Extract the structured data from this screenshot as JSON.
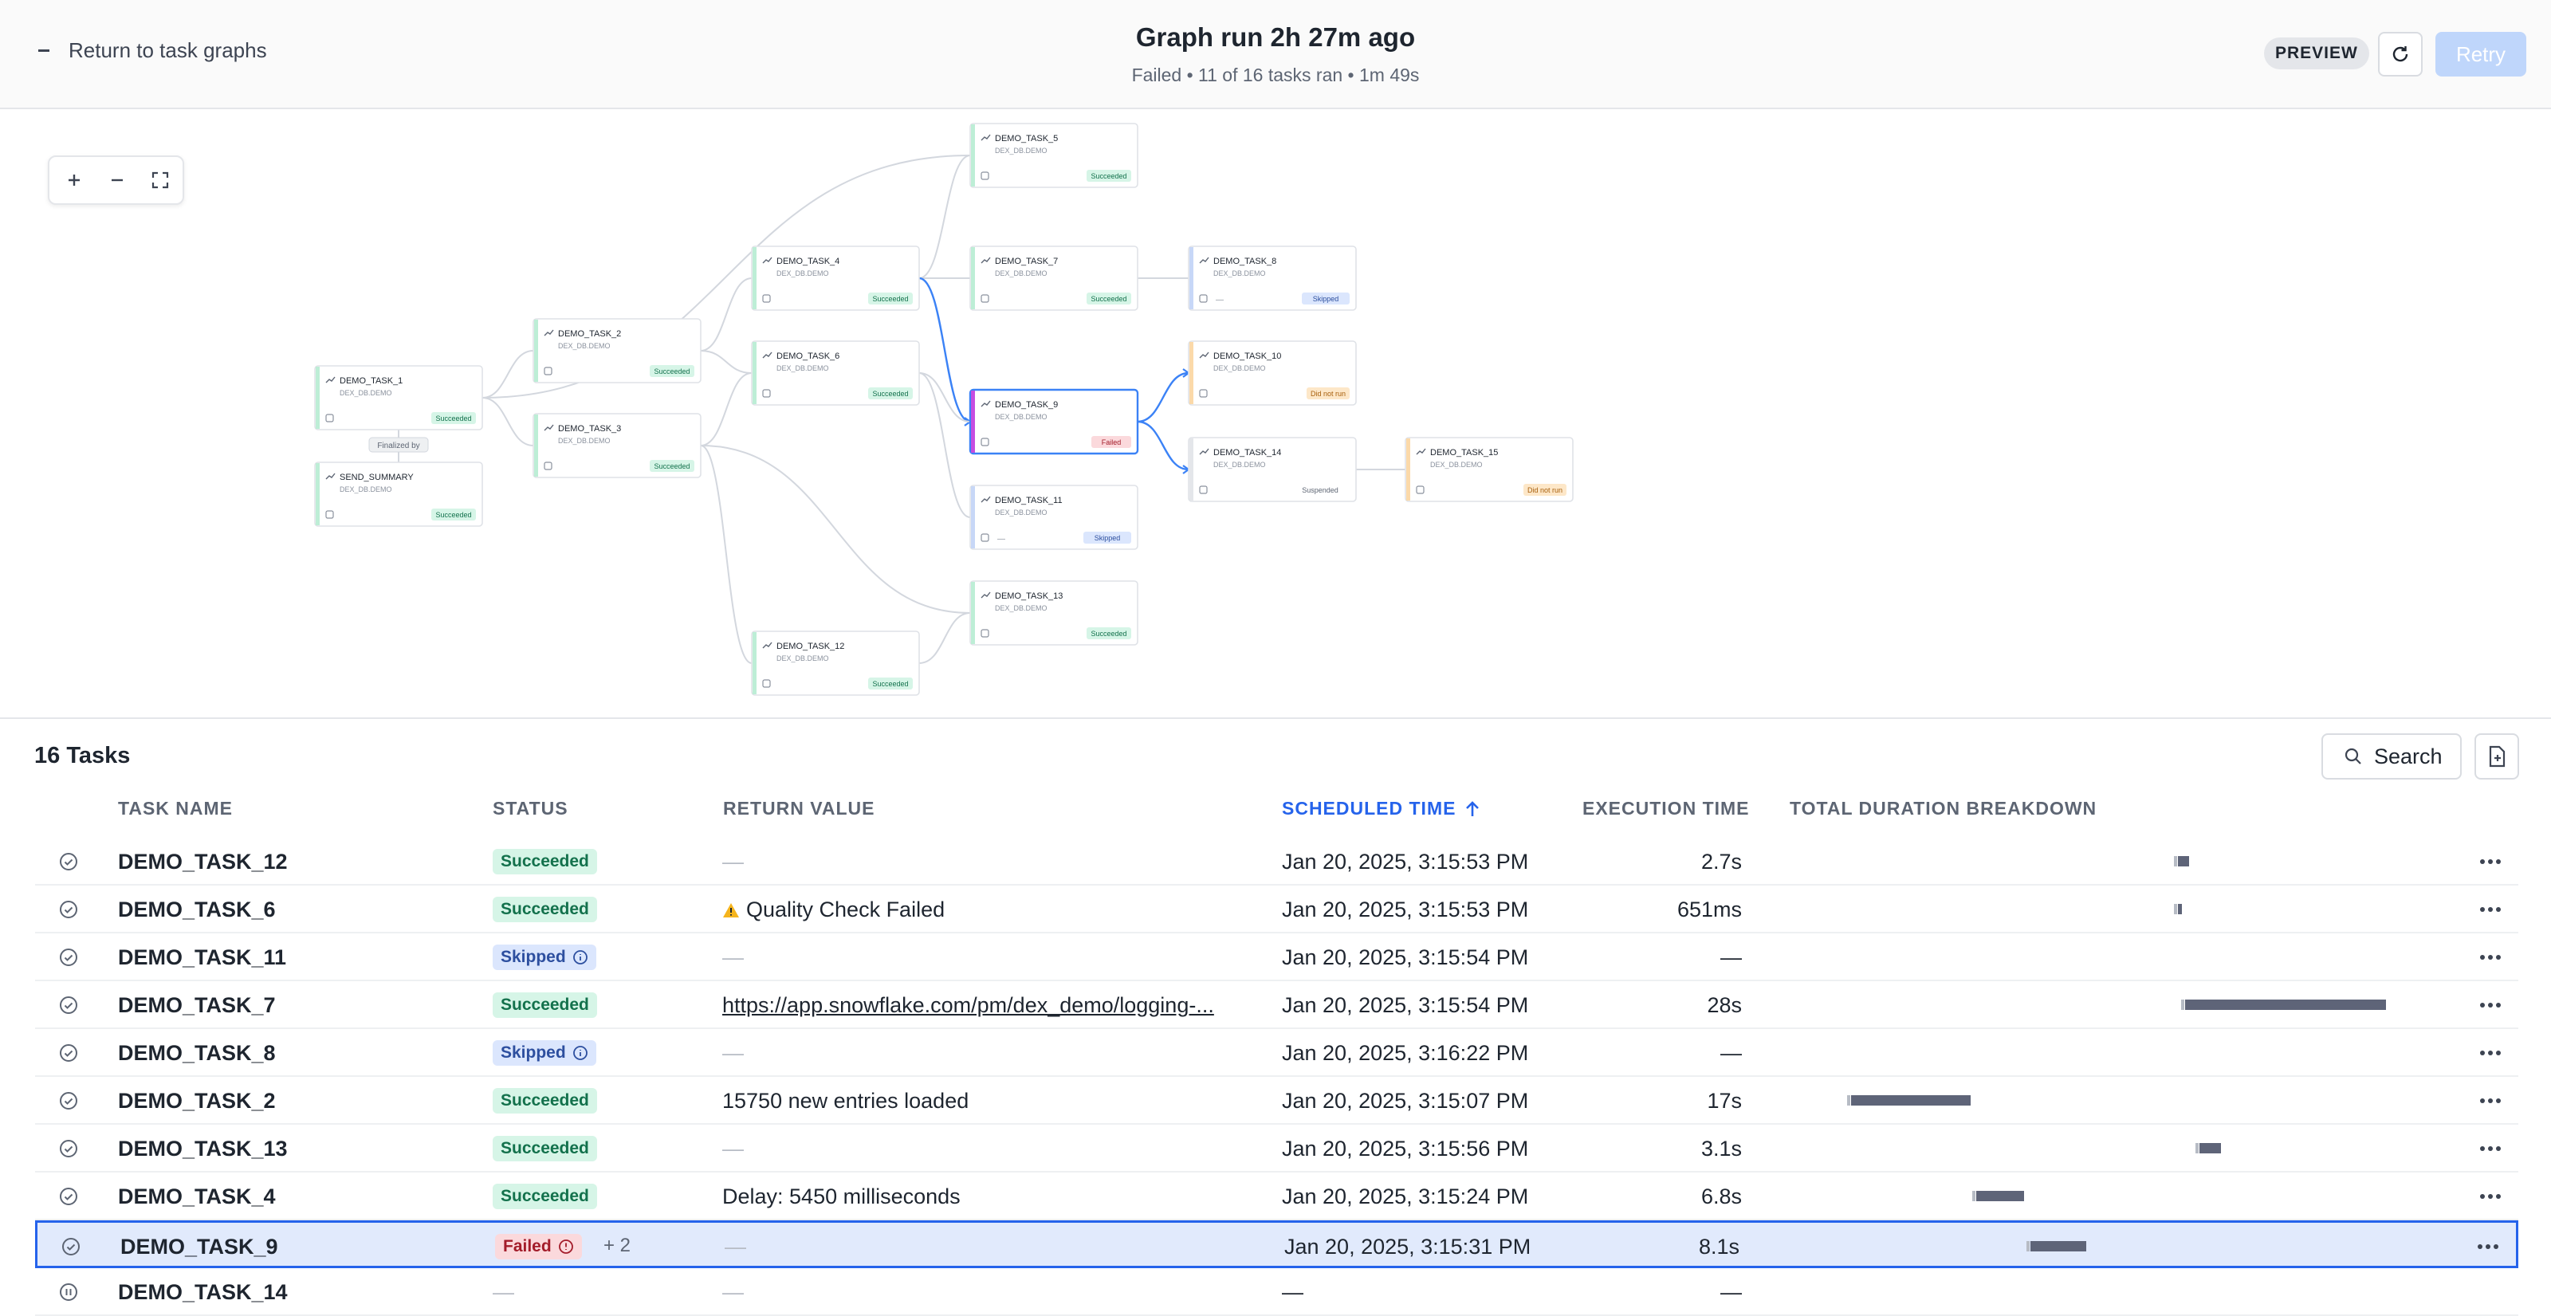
{
  "header": {
    "back_label": "Return to task graphs",
    "title": "Graph run 2h 27m ago",
    "subtitle": "Failed • 11 of 16 tasks ran • 1m 49s",
    "preview_label": "PREVIEW",
    "retry_label": "Retry"
  },
  "graph": {
    "nodes": [
      {
        "name": "DEMO_TASK_1",
        "db": "DEX_DB.DEMO",
        "status": "Succeeded"
      },
      {
        "name": "SEND_SUMMARY",
        "db": "DEX_DB.DEMO",
        "status": "Succeeded"
      },
      {
        "name": "DEMO_TASK_2",
        "db": "DEX_DB.DEMO",
        "status": "Succeeded"
      },
      {
        "name": "DEMO_TASK_3",
        "db": "DEX_DB.DEMO",
        "status": "Succeeded"
      },
      {
        "name": "DEMO_TASK_4",
        "db": "DEX_DB.DEMO",
        "status": "Succeeded"
      },
      {
        "name": "DEMO_TASK_6",
        "db": "DEX_DB.DEMO",
        "status": "Succeeded"
      },
      {
        "name": "DEMO_TASK_12",
        "db": "DEX_DB.DEMO",
        "status": "Succeeded"
      },
      {
        "name": "DEMO_TASK_5",
        "db": "DEX_DB.DEMO",
        "status": "Succeeded"
      },
      {
        "name": "DEMO_TASK_7",
        "db": "DEX_DB.DEMO",
        "status": "Succeeded"
      },
      {
        "name": "DEMO_TASK_9",
        "db": "DEX_DB.DEMO",
        "status": "Failed"
      },
      {
        "name": "DEMO_TASK_11",
        "db": "DEX_DB.DEMO",
        "status": "Skipped"
      },
      {
        "name": "DEMO_TASK_13",
        "db": "DEX_DB.DEMO",
        "status": "Succeeded"
      },
      {
        "name": "DEMO_TASK_8",
        "db": "DEX_DB.DEMO",
        "status": "Skipped"
      },
      {
        "name": "DEMO_TASK_10",
        "db": "DEX_DB.DEMO",
        "status": "Did not run"
      },
      {
        "name": "DEMO_TASK_14",
        "db": "DEX_DB.DEMO",
        "status": "Suspended"
      },
      {
        "name": "DEMO_TASK_15",
        "db": "DEX_DB.DEMO",
        "status": "Did not run"
      }
    ],
    "finalizer_label": "Finalized by"
  },
  "tasks": {
    "count_label": "16 Tasks",
    "search_label": "Search",
    "columns": {
      "task_name": "TASK NAME",
      "status": "STATUS",
      "return_value": "RETURN VALUE",
      "scheduled_time": "SCHEDULED TIME",
      "execution_time": "EXECUTION TIME",
      "duration": "TOTAL DURATION BREAKDOWN"
    },
    "rows": [
      {
        "name": "DEMO_TASK_12",
        "status": "Succeeded",
        "return_value": "—",
        "scheduled": "Jan 20, 2025, 3:15:53 PM",
        "exec": "2.7s"
      },
      {
        "name": "DEMO_TASK_6",
        "status": "Succeeded",
        "return_value": "Quality Check Failed",
        "scheduled": "Jan 20, 2025, 3:15:53 PM",
        "exec": "651ms"
      },
      {
        "name": "DEMO_TASK_11",
        "status": "Skipped",
        "return_value": "—",
        "scheduled": "Jan 20, 2025, 3:15:54 PM",
        "exec": "—"
      },
      {
        "name": "DEMO_TASK_7",
        "status": "Succeeded",
        "return_value": "https://app.snowflake.com/pm/dex_demo/logging-...",
        "scheduled": "Jan 20, 2025, 3:15:54 PM",
        "exec": "28s"
      },
      {
        "name": "DEMO_TASK_8",
        "status": "Skipped",
        "return_value": "—",
        "scheduled": "Jan 20, 2025, 3:16:22 PM",
        "exec": "—"
      },
      {
        "name": "DEMO_TASK_2",
        "status": "Succeeded",
        "return_value": "15750 new entries loaded",
        "scheduled": "Jan 20, 2025, 3:15:07 PM",
        "exec": "17s"
      },
      {
        "name": "DEMO_TASK_13",
        "status": "Succeeded",
        "return_value": "—",
        "scheduled": "Jan 20, 2025, 3:15:56 PM",
        "exec": "3.1s"
      },
      {
        "name": "DEMO_TASK_4",
        "status": "Succeeded",
        "return_value": "Delay: 5450 milliseconds",
        "scheduled": "Jan 20, 2025, 3:15:24 PM",
        "exec": "6.8s"
      },
      {
        "name": "DEMO_TASK_9",
        "status": "Failed",
        "extra": "+ 2",
        "return_value": "—",
        "scheduled": "Jan 20, 2025, 3:15:31 PM",
        "exec": "8.1s"
      },
      {
        "name": "DEMO_TASK_14",
        "status": "—",
        "return_value": "—",
        "scheduled": "—",
        "exec": "—"
      }
    ]
  },
  "colors": {
    "accent": "#2563eb",
    "success_bg": "#d6f5e7",
    "success_fg": "#13714c",
    "skip_bg": "#dbe6fd",
    "fail_bg": "#fbd9dc",
    "dnr_bg": "#fde7c8"
  }
}
